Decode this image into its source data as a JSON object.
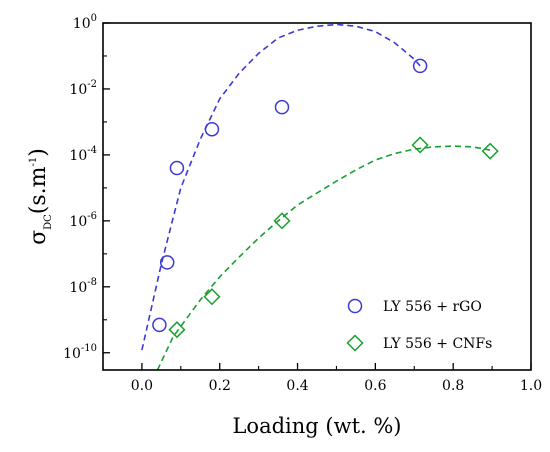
{
  "chart_data": {
    "type": "scatter",
    "xlabel": "Loading (wt. %)",
    "ylabel": {
      "main": "σ",
      "sub": "DC",
      "units": "(s.m",
      "exp": "-1",
      "close": ")"
    },
    "xlim": [
      -0.1,
      1.0
    ],
    "ylim": [
      3e-11,
      1.0
    ],
    "yscale": "log",
    "x_ticks": [
      0.0,
      0.2,
      0.4,
      0.6,
      0.8,
      1.0
    ],
    "x_tick_labels": [
      "0.0",
      "0.2",
      "0.4",
      "0.6",
      "0.8",
      "1.0"
    ],
    "y_ticks": [
      {
        "value": 1e-10,
        "base": "10",
        "exp": "-10"
      },
      {
        "value": 1e-08,
        "base": "10",
        "exp": "-8"
      },
      {
        "value": 1e-06,
        "base": "10",
        "exp": "-6"
      },
      {
        "value": 0.0001,
        "base": "10",
        "exp": "-4"
      },
      {
        "value": 0.01,
        "base": "10",
        "exp": "-2"
      },
      {
        "value": 1,
        "base": "10",
        "exp": "0"
      }
    ],
    "legend_position": "bottom-right",
    "series": [
      {
        "name": "LY 556 + rGO",
        "marker": "circle",
        "color": "#3a3ad6",
        "points": [
          {
            "x": 0.045,
            "y": 7e-10
          },
          {
            "x": 0.065,
            "y": 5.5e-08
          },
          {
            "x": 0.09,
            "y": 4e-05
          },
          {
            "x": 0.18,
            "y": 0.0006
          },
          {
            "x": 0.36,
            "y": 0.0028
          },
          {
            "x": 0.715,
            "y": 0.05
          }
        ],
        "fit": [
          {
            "x": 0.0,
            "y": 1.2e-10
          },
          {
            "x": 0.05,
            "y": 5e-08
          },
          {
            "x": 0.1,
            "y": 1e-05
          },
          {
            "x": 0.15,
            "y": 0.0003
          },
          {
            "x": 0.2,
            "y": 0.005
          },
          {
            "x": 0.25,
            "y": 0.03
          },
          {
            "x": 0.3,
            "y": 0.12
          },
          {
            "x": 0.35,
            "y": 0.35
          },
          {
            "x": 0.4,
            "y": 0.6
          },
          {
            "x": 0.45,
            "y": 0.8
          },
          {
            "x": 0.5,
            "y": 0.9
          },
          {
            "x": 0.55,
            "y": 0.8
          },
          {
            "x": 0.6,
            "y": 0.55
          },
          {
            "x": 0.65,
            "y": 0.25
          },
          {
            "x": 0.7,
            "y": 0.08
          },
          {
            "x": 0.715,
            "y": 0.05
          }
        ]
      },
      {
        "name": "LY 556 + CNFs",
        "marker": "diamond",
        "color": "#17a02d",
        "points": [
          {
            "x": 0.09,
            "y": 5e-10
          },
          {
            "x": 0.18,
            "y": 5e-09
          },
          {
            "x": 0.36,
            "y": 1e-06
          },
          {
            "x": 0.715,
            "y": 0.0002
          },
          {
            "x": 0.895,
            "y": 0.00013
          }
        ],
        "fit": [
          {
            "x": 0.04,
            "y": 3e-11
          },
          {
            "x": 0.08,
            "y": 3e-10
          },
          {
            "x": 0.15,
            "y": 4e-09
          },
          {
            "x": 0.2,
            "y": 2e-08
          },
          {
            "x": 0.25,
            "y": 8e-08
          },
          {
            "x": 0.3,
            "y": 3e-07
          },
          {
            "x": 0.35,
            "y": 1e-06
          },
          {
            "x": 0.4,
            "y": 3e-06
          },
          {
            "x": 0.45,
            "y": 7e-06
          },
          {
            "x": 0.5,
            "y": 1.6e-05
          },
          {
            "x": 0.55,
            "y": 3.5e-05
          },
          {
            "x": 0.6,
            "y": 7e-05
          },
          {
            "x": 0.65,
            "y": 0.00011
          },
          {
            "x": 0.7,
            "y": 0.00015
          },
          {
            "x": 0.75,
            "y": 0.000175
          },
          {
            "x": 0.8,
            "y": 0.000185
          },
          {
            "x": 0.85,
            "y": 0.000175
          },
          {
            "x": 0.895,
            "y": 0.00014
          }
        ]
      }
    ]
  }
}
